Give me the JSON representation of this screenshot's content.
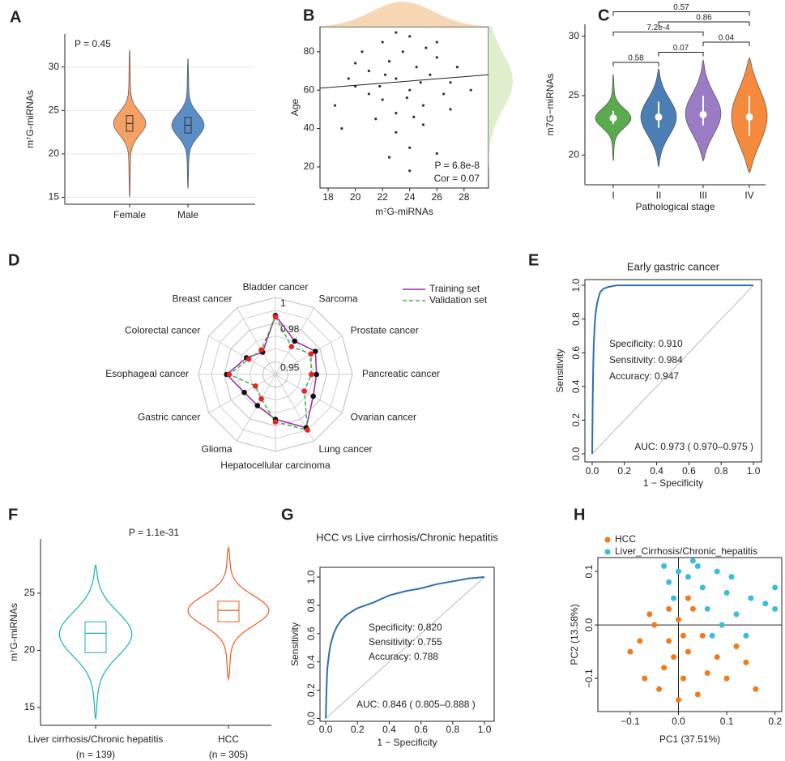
{
  "chart_data": [
    {
      "panel": "A",
      "type": "violin",
      "ylabel": "m⁷G-miRNAs",
      "categories": [
        "Female",
        "Male"
      ],
      "colors": [
        "#f5a064",
        "#5b8ec6"
      ],
      "min": [
        15,
        16
      ],
      "q1": [
        22.6,
        22.4
      ],
      "median": [
        23.5,
        23.3
      ],
      "q3": [
        24.4,
        24.2
      ],
      "max": [
        32,
        31
      ],
      "ylim": [
        14.2,
        33.8
      ],
      "yticks": [
        15,
        20,
        25,
        30
      ],
      "grid": true,
      "inner": "box",
      "violin_fill": true,
      "frame": "axes",
      "annotations": [
        "P = 0.45"
      ]
    },
    {
      "panel": "B",
      "type": "scatter",
      "xlabel": "m⁷G-miRNAs",
      "ylabel": "Age",
      "xlim": [
        17.4,
        29.8
      ],
      "xticks": [
        18,
        20,
        22,
        24,
        26,
        28
      ],
      "ylim": [
        9,
        93
      ],
      "yticks": [
        20,
        40,
        60,
        80
      ],
      "series": [
        {
          "color": "#333333",
          "x": [
            20,
            21,
            22,
            22.5,
            23,
            23,
            23.5,
            24,
            24.5,
            25,
            25.5,
            26,
            21.5,
            22,
            24,
            26.5,
            27,
            19.5,
            20.5,
            18.5,
            27.5,
            23,
            24,
            22.5,
            25,
            26,
            21,
            24.8,
            23.8,
            22.2,
            28.5,
            19,
            24,
            26,
            20,
            23,
            25.2,
            21.8,
            27,
            24.3
          ],
          "values": [
            62,
            70,
            55,
            75,
            66,
            48,
            80,
            60,
            72,
            52,
            68,
            77,
            45,
            85,
            88,
            58,
            64,
            66,
            80,
            52,
            72,
            38,
            30,
            25,
            42,
            85,
            58,
            64,
            56,
            68,
            60,
            40,
            18,
            27,
            74,
            90,
            82,
            62,
            50,
            46
          ]
        }
      ],
      "fit": {
        "x": [
          17.4,
          29.8
        ],
        "y": [
          61,
          68
        ]
      },
      "annotations": [
        "P = 6.8e-8",
        "Cor = 0.07"
      ],
      "frame": "box",
      "marginals": true
    },
    {
      "panel": "C",
      "type": "violin",
      "xlabel": "Pathological stage",
      "ylabel": "m7G−miRNAs",
      "categories": [
        "I",
        "II",
        "III",
        "IV"
      ],
      "colors": [
        "#5aab4e",
        "#4a7eb5",
        "#9a7cc4",
        "#f58a3d"
      ],
      "min": [
        19.5,
        19,
        19.5,
        18.5
      ],
      "q1": [
        22.6,
        22.3,
        22.5,
        21.6
      ],
      "median": [
        23.1,
        23.2,
        23.4,
        23.2
      ],
      "q3": [
        23.7,
        24.5,
        25,
        25
      ],
      "max": [
        26.8,
        27.3,
        28,
        28.2
      ],
      "ylim": [
        17.5,
        31
      ],
      "yticks": [
        20,
        25,
        30
      ],
      "inner": "dot",
      "violin_fill": true,
      "frame": "axes",
      "brackets": [
        {
          "groups": [
            "I",
            "II"
          ],
          "label": "0.58"
        },
        {
          "groups": [
            "II",
            "III"
          ],
          "label": "0.07"
        },
        {
          "groups": [
            "III",
            "IV"
          ],
          "label": "0.04"
        },
        {
          "groups": [
            "I",
            "III"
          ],
          "label": "7.2e-4"
        },
        {
          "groups": [
            "II",
            "IV"
          ],
          "label": "0.86"
        },
        {
          "groups": [
            "I",
            "IV"
          ],
          "label": "0.57"
        }
      ]
    },
    {
      "panel": "D",
      "type": "radar",
      "categories": [
        "Bladder cancer",
        "Sarcoma",
        "Prostate cancer",
        "Pancreatic cancer",
        "Ovarian cancer",
        "Lung cancer",
        "Hepatocellular carcinoma",
        "Glioma",
        "Gastric cancer",
        "Esophageal cancer",
        "Colorectal cancer",
        "Breast cancer"
      ],
      "rlim": [
        0.94,
        1
      ],
      "rticks": [
        0.95,
        0.98,
        1
      ],
      "legend": "top-right",
      "series": [
        {
          "name": "Training set",
          "color": "#9b2fae",
          "marker_color": "#111111",
          "values": [
            0.986,
            0.97,
            0.976,
            0.972,
            0.974,
            0.988,
            0.975,
            0.968,
            0.968,
            0.978,
            0.966,
            0.96
          ]
        },
        {
          "name": "Validation set",
          "color": "#4caf50",
          "marker_color": "#e8231f",
          "dash": true,
          "values": [
            0.985,
            0.965,
            0.972,
            0.968,
            0.966,
            0.99,
            0.977,
            0.962,
            0.958,
            0.976,
            0.964,
            0.962
          ]
        }
      ]
    },
    {
      "panel": "E",
      "type": "line",
      "title": "Early gastric cancer",
      "xlabel": "1 − Specificity",
      "ylabel": "Sensitivity",
      "x": [
        0,
        0.003,
        0.006,
        0.01,
        0.015,
        0.02,
        0.03,
        0.04,
        0.05,
        0.07,
        0.1,
        0.15,
        0.3,
        1
      ],
      "series": [
        {
          "color": "#2f6fb0",
          "values": [
            0,
            0.3,
            0.5,
            0.65,
            0.75,
            0.82,
            0.89,
            0.93,
            0.96,
            0.98,
            0.99,
            1,
            1,
            1
          ]
        }
      ],
      "xlim": [
        -0.045,
        1.05
      ],
      "xticks": [
        {
          "value": 0,
          "label": "0.0"
        },
        0.2,
        0.4,
        0.6,
        0.8,
        {
          "value": 1,
          "label": "1.0"
        }
      ],
      "ylim": [
        -0.048,
        1.034
      ],
      "yticks": [
        {
          "value": 0,
          "label": "0.0"
        },
        0.2,
        0.4,
        0.6,
        0.8,
        {
          "value": 1,
          "label": "1.0"
        }
      ],
      "annotations": [
        "Specificity: 0.910",
        "Sensitivity: 0.984",
        "Accuracy: 0.947",
        "AUC: 0.973 ( 0.970–0.975 )"
      ],
      "frame": "box",
      "reference": true
    },
    {
      "panel": "F",
      "type": "violin",
      "ylabel": "m⁷G-miRNAs",
      "categories": [
        "Liver cirrhosis/Chronic hepatitis",
        "HCC"
      ],
      "subtitles": [
        "(n = 139)",
        "(n = 305)"
      ],
      "colors": [
        "#19b2b2",
        "#ef5a22"
      ],
      "min": [
        14,
        17.5
      ],
      "q1": [
        19.8,
        22.5
      ],
      "median": [
        21.5,
        23.5
      ],
      "q3": [
        22.5,
        24.3
      ],
      "max": [
        27.5,
        29
      ],
      "ylim": [
        13.44,
        29.75
      ],
      "yticks": [
        15,
        20,
        25
      ],
      "inner": "outline",
      "violin_fill": false,
      "frame": "axes",
      "annotations": [
        "P = 1.1e-31"
      ]
    },
    {
      "panel": "G",
      "type": "line",
      "title": "HCC vs Live cirrhosis/Chronic hepatitis",
      "xlabel": "1 − Specificity",
      "ylabel": "Sensitivity",
      "x": [
        0,
        0.005,
        0.01,
        0.02,
        0.03,
        0.05,
        0.07,
        0.1,
        0.13,
        0.17,
        0.2,
        0.25,
        0.3,
        0.4,
        0.5,
        0.6,
        0.7,
        0.8,
        0.9,
        1
      ],
      "series": [
        {
          "color": "#2f6fb0",
          "values": [
            0,
            0.2,
            0.35,
            0.45,
            0.52,
            0.6,
            0.65,
            0.7,
            0.73,
            0.76,
            0.78,
            0.8,
            0.82,
            0.87,
            0.9,
            0.92,
            0.95,
            0.97,
            0.99,
            1
          ]
        }
      ],
      "xlim": [
        -0.036,
        1.061
      ],
      "xticks": [
        {
          "value": 0,
          "label": "0.0"
        },
        0.2,
        0.4,
        0.6,
        0.8,
        {
          "value": 1,
          "label": "1.0"
        }
      ],
      "ylim": [
        -0.02,
        1.069
      ],
      "yticks": [
        {
          "value": 0,
          "label": "0.0"
        },
        0.2,
        0.4,
        0.6,
        0.8,
        {
          "value": 1,
          "label": "1.0"
        }
      ],
      "annotations": [
        "Specificity: 0.820",
        "Sensitivity: 0.755",
        "Accuracy: 0.788",
        "AUC:  0.846 ( 0.805–0.888 )"
      ],
      "frame": "box",
      "reference": true
    },
    {
      "panel": "H",
      "type": "scatter",
      "xlabel": "PC1 (37.51%)",
      "ylabel": "PC2 (13.58%)",
      "xlim": [
        -0.167,
        0.214
      ],
      "xticks": [
        {
          "value": -0.1,
          "label": "−0.1"
        },
        {
          "value": 0,
          "label": "0.0"
        },
        0.1,
        0.2
      ],
      "ylim": [
        -0.162,
        0.126
      ],
      "yticks": [
        {
          "value": -0.1,
          "label": "−0.1"
        },
        {
          "value": 0,
          "label": "0.0"
        },
        0.1
      ],
      "legend": "top-left",
      "zero_lines": true,
      "frame": "box",
      "series": [
        {
          "name": "HCC",
          "color": "#f07a1e",
          "x": [
            -0.05,
            -0.02,
            0,
            0.02,
            -0.03,
            0.05,
            0.01,
            -0.08,
            0.08,
            0.03,
            -0.01,
            0.1,
            0.16,
            -0.06,
            0,
            0.06,
            -0.04,
            0.12,
            -0.1,
            0.02,
            -0.02,
            0.04,
            0.14,
            -0.07,
            0.01
          ],
          "values": [
            0,
            -0.03,
            0.01,
            -0.05,
            -0.08,
            -0.02,
            -0.1,
            -0.03,
            -0.06,
            0.03,
            -0.06,
            -0.1,
            -0.12,
            0.02,
            -0.14,
            -0.09,
            -0.12,
            -0.04,
            -0.05,
            0.05,
            0.03,
            -0.13,
            -0.07,
            -0.1,
            -0.02
          ]
        },
        {
          "name": "Liver_Cirrhosis/Chronic_hepatitis",
          "color": "#3bbdd6",
          "x": [
            0,
            0.05,
            0.1,
            0.15,
            0.2,
            0.03,
            -0.02,
            0.08,
            0.12,
            0.06,
            0.18,
            -0.01,
            0.02,
            0.09,
            0.14,
            0.04,
            0.11,
            -0.03,
            0.07,
            0.2
          ],
          "values": [
            0.1,
            0.07,
            0.06,
            0.05,
            0.07,
            0.12,
            0.08,
            0.1,
            0.02,
            0.03,
            0.04,
            0.05,
            0.09,
            0,
            -0.02,
            0.11,
            0.09,
            0.11,
            -0.02,
            0.03
          ]
        }
      ]
    }
  ]
}
